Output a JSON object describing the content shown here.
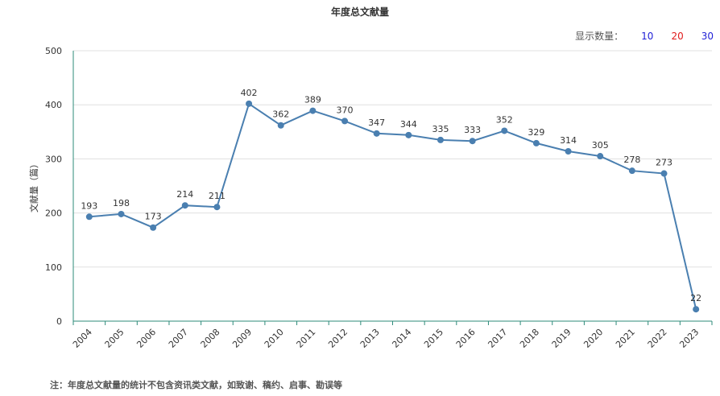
{
  "title": "年度总文献量",
  "display_count": {
    "label": "显示数量：",
    "options": [
      {
        "value": "10",
        "color": "#1f1fd6"
      },
      {
        "value": "20",
        "color": "#e01b1b"
      },
      {
        "value": "30",
        "color": "#1f1fd6"
      }
    ]
  },
  "note": "注：年度总文献量的统计不包含资讯类文献，如致谢、稿约、启事、勘误等",
  "chart_data": {
    "type": "line",
    "ylabel": "文献量（篇）",
    "ylim": [
      0,
      500
    ],
    "yticks": [
      0,
      100,
      200,
      300,
      400,
      500
    ],
    "categories": [
      "2004",
      "2005",
      "2006",
      "2007",
      "2008",
      "2009",
      "2010",
      "2011",
      "2012",
      "2013",
      "2014",
      "2015",
      "2016",
      "2017",
      "2018",
      "2019",
      "2020",
      "2021",
      "2022",
      "2023"
    ],
    "values": [
      193,
      198,
      173,
      214,
      211,
      402,
      362,
      389,
      370,
      347,
      344,
      335,
      333,
      352,
      329,
      314,
      305,
      278,
      273,
      22
    ],
    "line_color": "#4a7fb0",
    "axis_color": "#2e8b7a",
    "grid": true
  }
}
